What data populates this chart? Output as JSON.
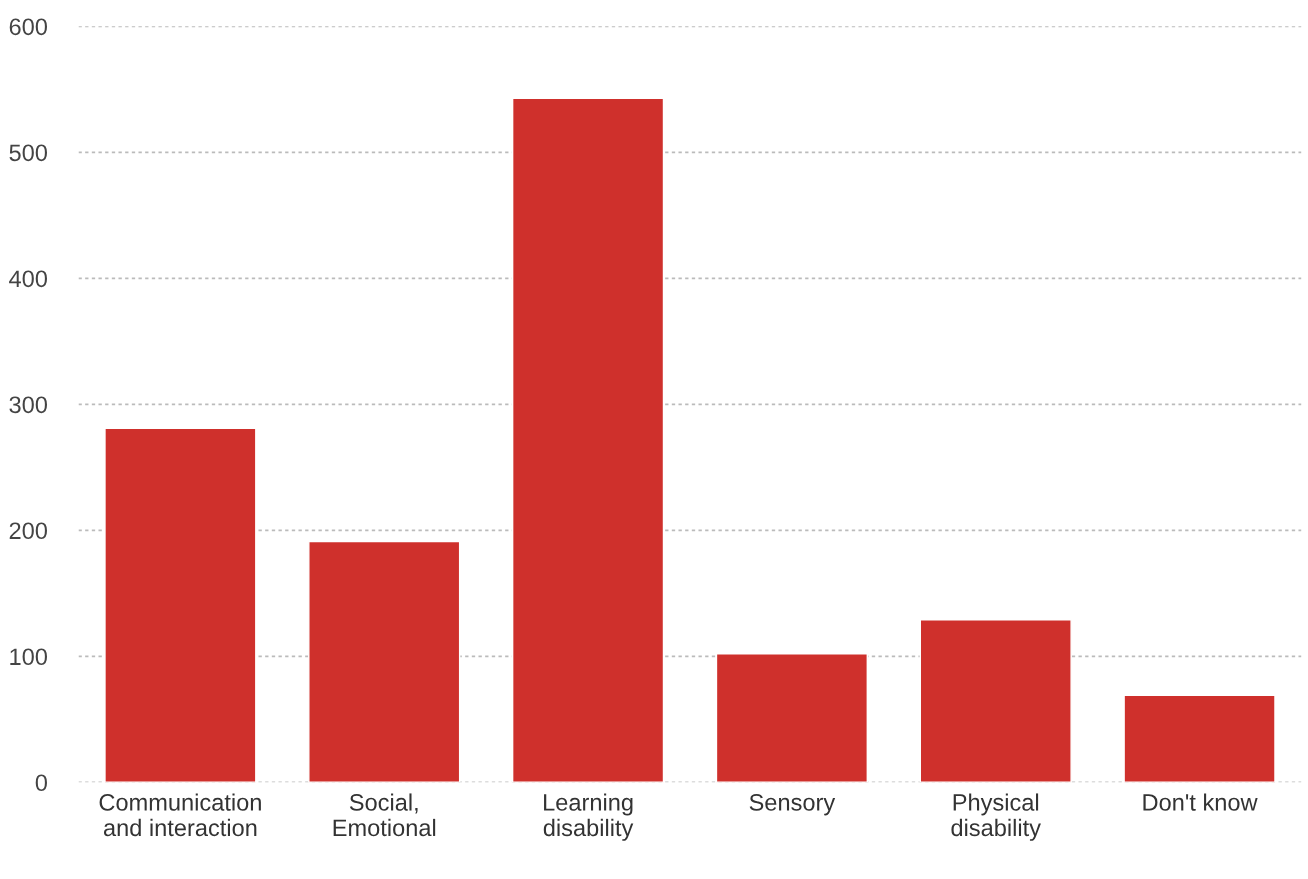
{
  "chart_data": {
    "type": "bar",
    "categories": [
      "Communication\nand interaction",
      "Social,\nEmotional",
      "Learning\ndisability",
      "Sensory",
      "Physical\ndisability",
      "Don't know"
    ],
    "values": [
      281,
      191,
      543,
      102,
      129,
      69
    ],
    "color": "#cf302c",
    "ylim": [
      0,
      600
    ],
    "yticks": [
      0,
      100,
      200,
      300,
      400,
      500,
      600
    ],
    "grid": "y",
    "legend": false
  }
}
